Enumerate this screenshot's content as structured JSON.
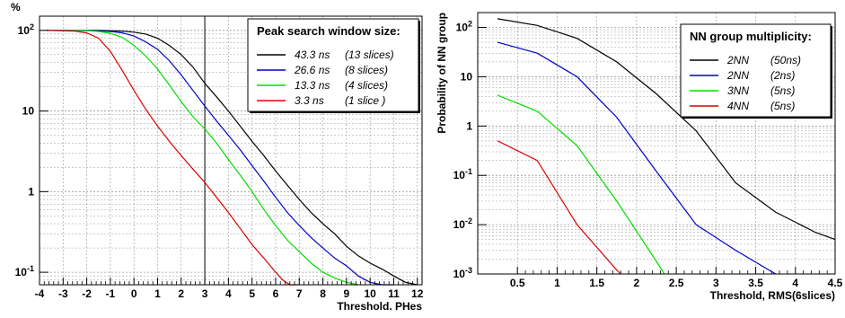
{
  "chart_data": [
    {
      "type": "line",
      "ylabel": "%",
      "xlabel": "Threshold. PHes",
      "yscale": "log",
      "xlim": [
        -4,
        12.2
      ],
      "ylim": [
        0.07,
        150
      ],
      "x_ticks": [
        -4,
        -3,
        -2,
        -1,
        0,
        1,
        2,
        3,
        4,
        5,
        6,
        7,
        8,
        9,
        10,
        11,
        12
      ],
      "y_ticks": [
        {
          "value": 0.1,
          "base": "10",
          "exp": "-1"
        },
        {
          "value": 1,
          "label": "1"
        },
        {
          "value": 10,
          "label": "10"
        },
        {
          "value": 100,
          "base": "10",
          "exp": "2"
        }
      ],
      "vline": 3,
      "grid": true,
      "legend_title": "Peak search window size:",
      "legend_position": "top-right",
      "series": [
        {
          "name": "43.3 ns",
          "note": "(13 slices)",
          "color": "#000000",
          "x": [
            -3.7,
            -1.5,
            -1,
            -0.5,
            0,
            0.5,
            1,
            1.5,
            2,
            2.5,
            3,
            3.5,
            4,
            4.5,
            5,
            5.5,
            6,
            6.5,
            7,
            7.5,
            8,
            8.5,
            9,
            9.5,
            10,
            10.5,
            11,
            11.5,
            12
          ],
          "y": [
            100,
            100,
            99,
            98,
            95,
            90,
            80,
            65,
            50,
            35,
            22,
            15,
            10,
            6.5,
            4.2,
            2.8,
            1.8,
            1.2,
            0.8,
            0.55,
            0.4,
            0.3,
            0.21,
            0.16,
            0.13,
            0.11,
            0.09,
            0.075,
            0.07
          ]
        },
        {
          "name": "26.6 ns",
          "note": "(8 slices)",
          "color": "#0000cc",
          "x": [
            -3.7,
            -1.5,
            -1,
            -0.5,
            0,
            0.5,
            1,
            1.5,
            2,
            2.5,
            3,
            3.5,
            4,
            4.5,
            5,
            5.5,
            6,
            6.5,
            7,
            7.5,
            8,
            8.5,
            9,
            9.5,
            10,
            10.5,
            11
          ],
          "y": [
            100,
            99,
            97,
            93,
            85,
            72,
            58,
            42,
            28,
            18,
            11.5,
            7.5,
            5,
            3.3,
            2.1,
            1.35,
            0.85,
            0.55,
            0.38,
            0.27,
            0.2,
            0.15,
            0.12,
            0.09,
            0.075,
            0.07,
            0.07
          ]
        },
        {
          "name": "13.3 ns",
          "note": "(4 slices)",
          "color": "#00dd00",
          "x": [
            -3.7,
            -2,
            -1.5,
            -1,
            -0.5,
            0,
            0.5,
            1,
            1.5,
            2,
            2.5,
            3,
            3.5,
            4,
            4.5,
            5,
            5.5,
            6,
            6.5,
            7,
            7.5,
            8,
            8.5,
            9,
            9.5
          ],
          "y": [
            100,
            99,
            97,
            92,
            82,
            65,
            48,
            33,
            21,
            13,
            8.5,
            6,
            4,
            2.5,
            1.6,
            1,
            0.6,
            0.38,
            0.25,
            0.18,
            0.13,
            0.1,
            0.085,
            0.075,
            0.07
          ]
        },
        {
          "name": "3.3 ns",
          "note": "(1 slice )",
          "color": "#dd0000",
          "x": [
            -3.7,
            -2.5,
            -2,
            -1.5,
            -1,
            -0.5,
            0,
            0.5,
            1,
            1.5,
            2,
            2.5,
            3,
            3.5,
            4,
            4.5,
            5,
            5.5,
            6,
            6.3,
            6.6,
            7
          ],
          "y": [
            100,
            98,
            93,
            80,
            55,
            32,
            18,
            10.5,
            6.5,
            4.2,
            2.8,
            1.9,
            1.3,
            0.85,
            0.55,
            0.35,
            0.22,
            0.15,
            0.1,
            0.08,
            0.07,
            0.07
          ]
        }
      ]
    },
    {
      "type": "line",
      "ylabel": "Probability of NN group",
      "xlabel": "Threshold, RMS(6slices)",
      "yscale": "log",
      "xlim": [
        0,
        4.5
      ],
      "ylim": [
        0.001,
        200
      ],
      "x_ticks": [
        0.5,
        1,
        1.5,
        2,
        2.5,
        3,
        3.5,
        4,
        4.5
      ],
      "y_ticks": [
        {
          "value": 0.001,
          "base": "10",
          "exp": "-3"
        },
        {
          "value": 0.01,
          "base": "10",
          "exp": "-2"
        },
        {
          "value": 0.1,
          "base": "10",
          "exp": "-1"
        },
        {
          "value": 1,
          "label": "1"
        },
        {
          "value": 10,
          "label": "10"
        },
        {
          "value": 100,
          "base": "10",
          "exp": "2"
        }
      ],
      "grid": true,
      "legend_title": "NN group multiplicity:",
      "legend_position": "top-right",
      "series": [
        {
          "name": "2NN",
          "note": "(50ns)",
          "color": "#000000",
          "x": [
            0.25,
            0.75,
            1.25,
            1.75,
            2.25,
            2.75,
            3.25,
            3.75,
            4.25,
            4.5
          ],
          "y": [
            150,
            110,
            60,
            20,
            4.5,
            0.8,
            0.07,
            0.018,
            0.007,
            0.005
          ]
        },
        {
          "name": "2NN",
          "note": "(2ns)",
          "color": "#0000cc",
          "x": [
            0.25,
            0.75,
            1.25,
            1.75,
            2.25,
            2.75,
            3.25,
            3.75
          ],
          "y": [
            50,
            30,
            10,
            1.5,
            0.12,
            0.01,
            0.003,
            0.001
          ]
        },
        {
          "name": "3NN",
          "note": "(5ns)",
          "color": "#00dd00",
          "x": [
            0.25,
            0.75,
            1.25,
            1.75,
            2.25,
            2.35
          ],
          "y": [
            4.2,
            2,
            0.4,
            0.03,
            0.0018,
            0.001
          ]
        },
        {
          "name": "4NN",
          "note": "(5ns)",
          "color": "#dd0000",
          "x": [
            0.25,
            0.75,
            1.25,
            1.75,
            1.8
          ],
          "y": [
            0.5,
            0.2,
            0.01,
            0.0012,
            0.001
          ]
        }
      ]
    }
  ]
}
